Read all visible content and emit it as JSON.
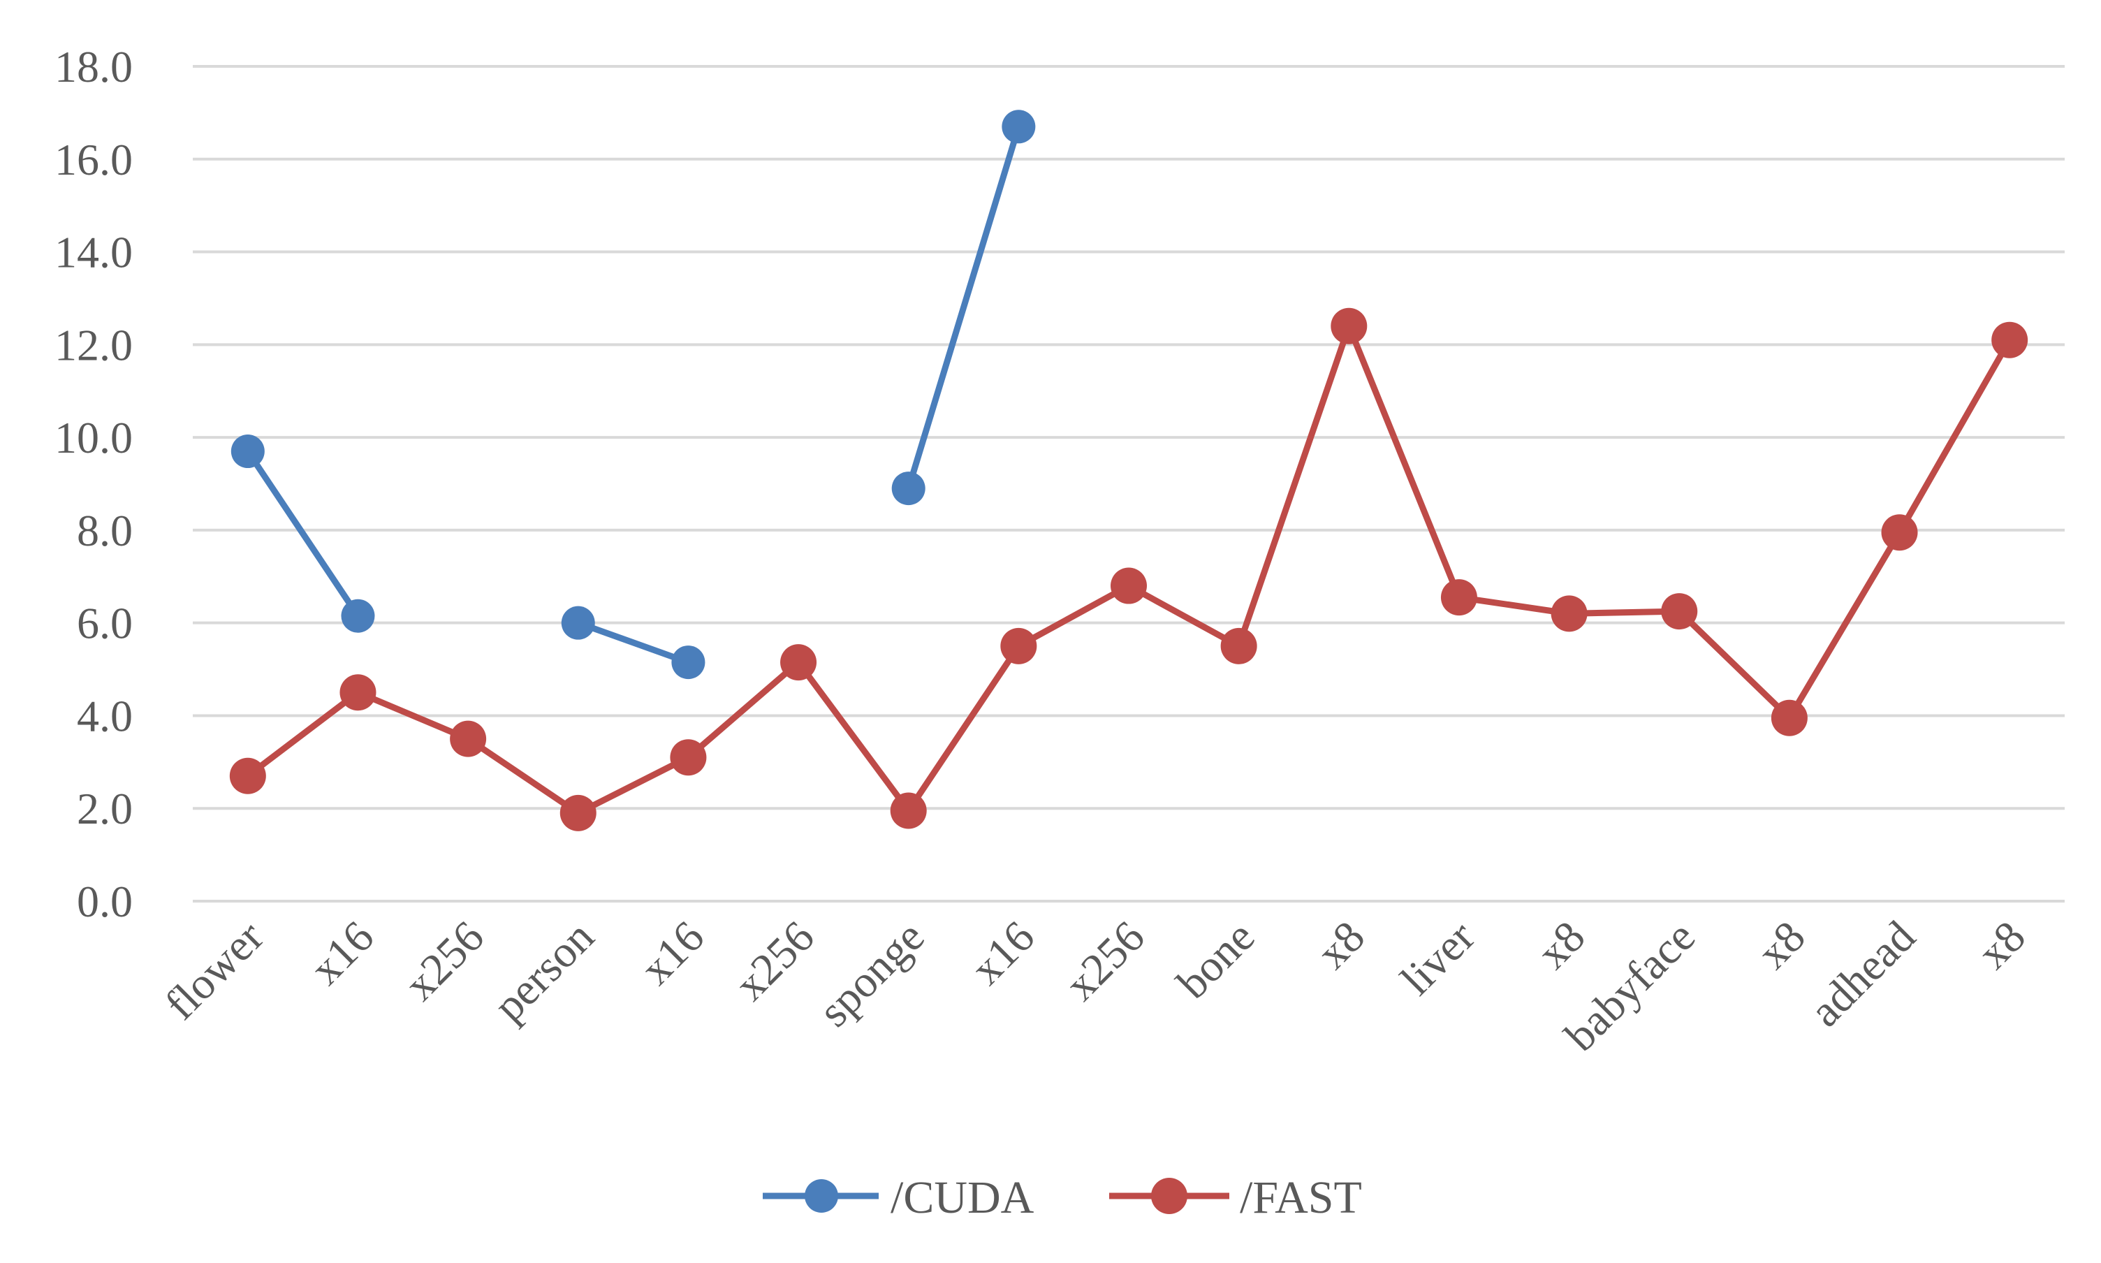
{
  "chart_data": {
    "type": "line",
    "categories": [
      "flower",
      "x16",
      "x256",
      "person",
      "x16",
      "x256",
      "sponge",
      "x16",
      "x256",
      "bone",
      "x8",
      "liver",
      "x8",
      "babyface",
      "x8",
      "adhead",
      "x8"
    ],
    "y_ticks": [
      "0.0",
      "2.0",
      "4.0",
      "6.0",
      "8.0",
      "10.0",
      "12.0",
      "14.0",
      "16.0",
      "18.0"
    ],
    "ylim": [
      0,
      18
    ],
    "grid": true,
    "legend_position": "bottom",
    "series": [
      {
        "name": "/CUDA",
        "color": "#4a7ebb",
        "values": [
          9.7,
          6.15,
          null,
          6.0,
          5.15,
          null,
          8.9,
          16.7,
          null,
          null,
          null,
          null,
          null,
          null,
          null,
          null,
          null
        ]
      },
      {
        "name": "/FAST",
        "color": "#be4b48",
        "values": [
          2.7,
          4.5,
          3.5,
          1.9,
          3.1,
          5.15,
          1.95,
          5.5,
          6.8,
          5.5,
          12.4,
          6.55,
          6.2,
          6.25,
          3.95,
          7.95,
          12.1
        ]
      }
    ]
  }
}
